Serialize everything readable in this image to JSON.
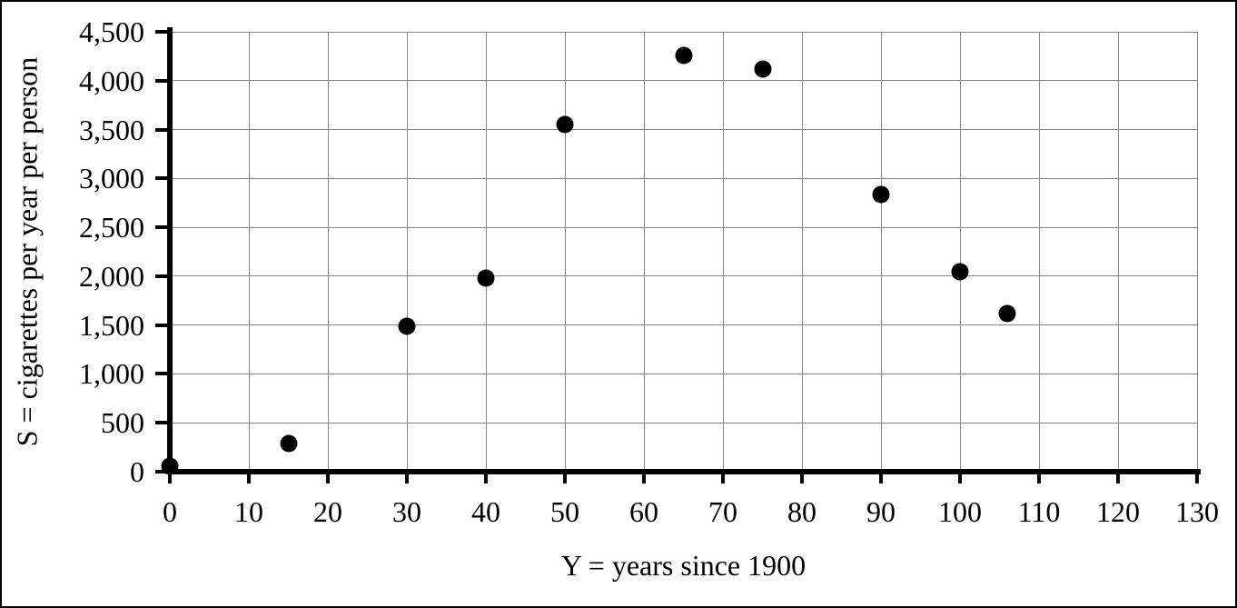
{
  "chart_data": {
    "type": "scatter",
    "title": "",
    "xlabel": "Y = years since 1900",
    "ylabel": "S = cigarettes per year per person",
    "points": [
      {
        "x": 0,
        "y": 54
      },
      {
        "x": 15,
        "y": 285
      },
      {
        "x": 30,
        "y": 1485
      },
      {
        "x": 40,
        "y": 1976
      },
      {
        "x": 50,
        "y": 3552
      },
      {
        "x": 65,
        "y": 4258
      },
      {
        "x": 75,
        "y": 4122
      },
      {
        "x": 90,
        "y": 2834
      },
      {
        "x": 100,
        "y": 2049
      },
      {
        "x": 106,
        "y": 1619
      }
    ],
    "xlim": [
      0,
      130
    ],
    "ylim": [
      0,
      4500
    ],
    "x_ticks": [
      0,
      10,
      20,
      30,
      40,
      50,
      60,
      70,
      80,
      90,
      100,
      110,
      120,
      130
    ],
    "x_tick_labels": [
      "0",
      "10",
      "20",
      "30",
      "40",
      "50",
      "60",
      "70",
      "80",
      "90",
      "100",
      "110",
      "120",
      "130"
    ],
    "y_ticks": [
      0,
      500,
      1000,
      1500,
      2000,
      2500,
      3000,
      3500,
      4000,
      4500
    ],
    "y_tick_labels": [
      "0",
      "500",
      "1,000",
      "1,500",
      "2,000",
      "2,500",
      "3,000",
      "3,500",
      "4,000",
      "4,500"
    ],
    "grid": true,
    "legend": "none",
    "marker_color": "#000000",
    "marker_diameter_px": 19,
    "gridline_color": "#878787",
    "axis_color": "#000000",
    "frame_border_color": "#000000",
    "background_color": "#ffffff"
  }
}
